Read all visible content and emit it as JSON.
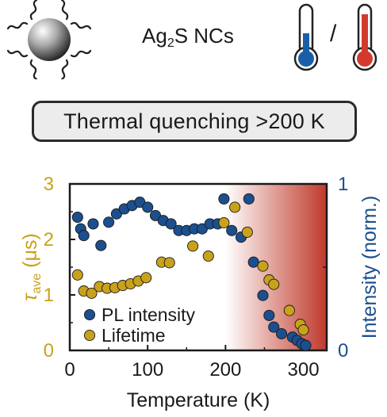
{
  "header": {
    "material_prefix": "Ag",
    "material_subscript": "2",
    "material_suffix": "S NCs",
    "slash": "/",
    "icons": [
      "nanocrystal-with-ligands-icon",
      "cold-thermometer-icon",
      "hot-thermometer-icon"
    ]
  },
  "banner": {
    "text": "Thermal quenching >200 K"
  },
  "colors": {
    "lifetime": "#c9a21b",
    "intensity": "#1b4f8e",
    "quench_shade": "#c0392b",
    "axis": "#1a1a1a"
  },
  "chart_data": {
    "type": "scatter",
    "xlabel": "Temperature (K)",
    "ylabel_left": {
      "symbol": "τ",
      "subscript": "ave",
      "unit": " (μs)"
    },
    "ylabel_right": "Intensity (norm.)",
    "xlim": [
      0,
      330
    ],
    "ylim_left": [
      0,
      3
    ],
    "ylim_right": [
      0,
      1.0
    ],
    "xticks": [
      0,
      100,
      200,
      300
    ],
    "yticks_left": [
      0,
      1,
      2,
      3
    ],
    "yticks_right": [
      0,
      1
    ],
    "shaded_region": {
      "from": 200,
      "to": 330,
      "label": ""
    },
    "legend_position": "bottom-left",
    "series": [
      {
        "name": "PL intensity",
        "axis": "right",
        "x": [
          10,
          14,
          18,
          30,
          40,
          50,
          60,
          70,
          80,
          90,
          100,
          110,
          120,
          130,
          140,
          150,
          160,
          170,
          180,
          190,
          198,
          208,
          220,
          230,
          236,
          248,
          256,
          262,
          272,
          286,
          292,
          298,
          303
        ],
        "y": [
          0.8,
          0.73,
          0.69,
          0.76,
          0.63,
          0.77,
          0.82,
          0.85,
          0.87,
          0.89,
          0.86,
          0.81,
          0.78,
          0.76,
          0.72,
          0.72,
          0.73,
          0.73,
          0.76,
          0.76,
          0.91,
          0.72,
          0.68,
          0.91,
          0.53,
          0.33,
          0.21,
          0.14,
          0.1,
          0.08,
          0.06,
          0.04,
          0.03
        ]
      },
      {
        "name": "Lifetime",
        "axis": "left",
        "x": [
          10,
          18,
          28,
          38,
          48,
          58,
          68,
          78,
          88,
          98,
          118,
          128,
          158,
          178,
          198,
          212,
          228,
          248,
          256,
          262,
          282,
          296,
          300
        ],
        "y": [
          1.36,
          1.07,
          1.03,
          1.15,
          1.12,
          1.13,
          1.17,
          1.2,
          1.25,
          1.31,
          1.59,
          1.58,
          1.88,
          1.7,
          2.3,
          2.58,
          2.13,
          1.52,
          1.27,
          1.19,
          0.72,
          0.47,
          0.37
        ]
      }
    ]
  }
}
